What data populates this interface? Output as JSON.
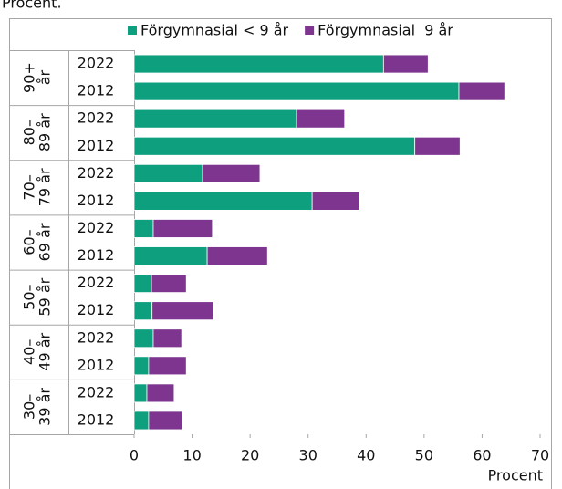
{
  "chart_data": {
    "type": "stacked-barh",
    "title": "Procent.",
    "x_label": "Procent",
    "groups": [
      {
        "lines": [
          "90+",
          "år"
        ]
      },
      {
        "lines": [
          "80–",
          "89 år"
        ]
      },
      {
        "lines": [
          "70–",
          "79 år"
        ]
      },
      {
        "lines": [
          "60–",
          "69 år"
        ]
      },
      {
        "lines": [
          "50–",
          "59 år"
        ]
      },
      {
        "lines": [
          "40–",
          "49 år"
        ]
      },
      {
        "lines": [
          "30–",
          "39 år"
        ]
      }
    ],
    "categories": [
      "2022",
      "2012",
      "2022",
      "2012",
      "2022",
      "2012",
      "2022",
      "2012",
      "2022",
      "2012",
      "2022",
      "2012",
      "2022",
      "2012"
    ],
    "series": [
      {
        "name": "Förgymnasial < 9 år",
        "color": "#0e9f7e",
        "values": [
          43,
          56,
          28,
          48.4,
          11.8,
          30.7,
          3.3,
          12.6,
          3,
          3.1,
          3.3,
          2.5,
          2.2,
          2.5
        ]
      },
      {
        "name": "Förgymnasial  9 år",
        "color": "#7d3590",
        "values": [
          7.7,
          7.9,
          8.3,
          7.8,
          9.9,
          8.2,
          10.2,
          10.4,
          6,
          10.6,
          4.9,
          6.5,
          4.7,
          5.8
        ]
      }
    ],
    "xlim": [
      0,
      70
    ],
    "xticks": [
      0,
      10,
      20,
      30,
      40,
      50,
      60,
      70
    ]
  }
}
